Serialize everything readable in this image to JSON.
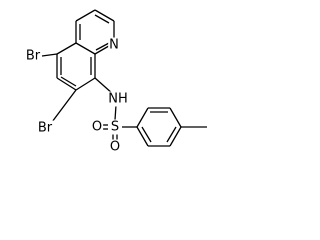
{
  "nodes": [
    {
      "label": "N"
    },
    {
      "label": "Br"
    },
    {
      "label": "Br"
    },
    {
      "label": "NH"
    },
    {
      "label": "S"
    },
    {
      "label": "O"
    },
    {
      "label": "O"
    }
  ]
}
